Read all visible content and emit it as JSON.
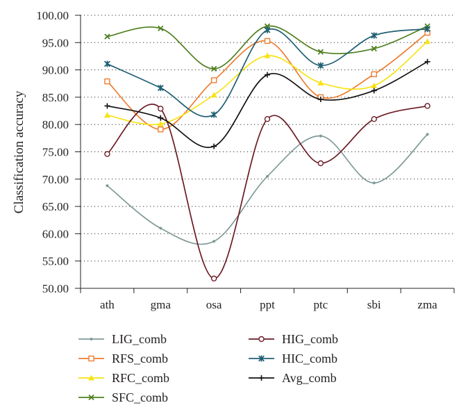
{
  "chart_data": {
    "type": "line",
    "xlabel": "",
    "ylabel": "Classification accuracy",
    "ylim": [
      50,
      100
    ],
    "ytick_step": 5,
    "yticks": [
      "50.00",
      "55.00",
      "60.00",
      "65.00",
      "70.00",
      "75.00",
      "80.00",
      "85.00",
      "90.00",
      "95.00",
      "100.00"
    ],
    "categories": [
      "ath",
      "gma",
      "osa",
      "ppt",
      "ptc",
      "sbi",
      "zma"
    ],
    "grid": true,
    "smooth": true,
    "legend_position": "bottom",
    "series": [
      {
        "name": "LIG_comb",
        "color": "#7f9a98",
        "marker": "dot",
        "values": [
          68.8,
          61.0,
          58.6,
          70.5,
          77.9,
          69.3,
          78.2
        ]
      },
      {
        "name": "RFS_comb",
        "color": "#ed7d31",
        "marker": "square",
        "values": [
          87.9,
          79.1,
          88.1,
          95.3,
          85.0,
          89.2,
          96.8
        ]
      },
      {
        "name": "RFC_comb",
        "color": "#f7e316",
        "marker": "triangle",
        "values": [
          81.7,
          80.1,
          85.4,
          92.6,
          87.6,
          87.1,
          95.2
        ]
      },
      {
        "name": "SFC_comb",
        "color": "#4f7f1f",
        "marker": "x",
        "values": [
          96.1,
          97.6,
          90.2,
          98.0,
          93.3,
          93.9,
          98.0
        ]
      },
      {
        "name": "HIG_comb",
        "color": "#6b1a24",
        "marker": "circle",
        "values": [
          74.6,
          82.9,
          51.8,
          81.0,
          72.9,
          81.0,
          83.4
        ]
      },
      {
        "name": "HIC_comb",
        "color": "#1f5f73",
        "marker": "star",
        "values": [
          91.1,
          86.7,
          81.8,
          97.3,
          90.8,
          96.3,
          97.5
        ]
      },
      {
        "name": "Avg_comb",
        "color": "#111111",
        "marker": "plus",
        "values": [
          83.4,
          81.2,
          76.0,
          89.1,
          84.6,
          86.2,
          91.5
        ]
      }
    ]
  }
}
